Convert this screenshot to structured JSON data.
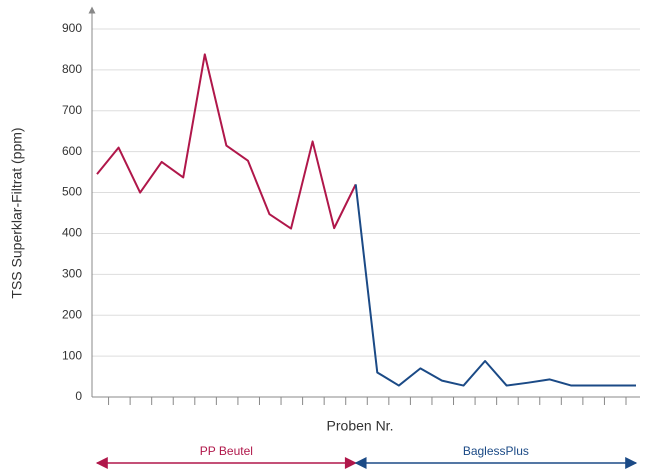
{
  "chart_data": {
    "type": "line",
    "y_label": "TSS Superklar-Filtrat (ppm)",
    "x_label": "Proben Nr.",
    "categories": [
      null,
      null,
      null,
      null,
      null,
      null,
      null,
      null,
      null,
      null,
      null,
      null,
      null,
      null,
      null,
      null,
      null,
      null,
      null,
      null,
      null,
      null,
      null,
      null,
      null,
      null
    ],
    "series": [
      {
        "name": "PP Beutel",
        "color": "#b0174a",
        "values": [
          545,
          610,
          500,
          575,
          537,
          838,
          615,
          578,
          447,
          412,
          625,
          413,
          520,
          null,
          null,
          null,
          null,
          null,
          null,
          null,
          null,
          null,
          null,
          null,
          null,
          null
        ]
      },
      {
        "name": "BaglessPlus",
        "color": "#1b4a86",
        "values": [
          null,
          null,
          null,
          null,
          null,
          null,
          null,
          null,
          null,
          null,
          null,
          null,
          520,
          60,
          28,
          70,
          40,
          28,
          88,
          28,
          35,
          43,
          28,
          28,
          28,
          28
        ]
      }
    ],
    "ylim": [
      0,
      900
    ],
    "yticks": [
      0,
      100,
      200,
      300,
      400,
      500,
      600,
      700,
      800,
      900
    ],
    "grid": true
  }
}
